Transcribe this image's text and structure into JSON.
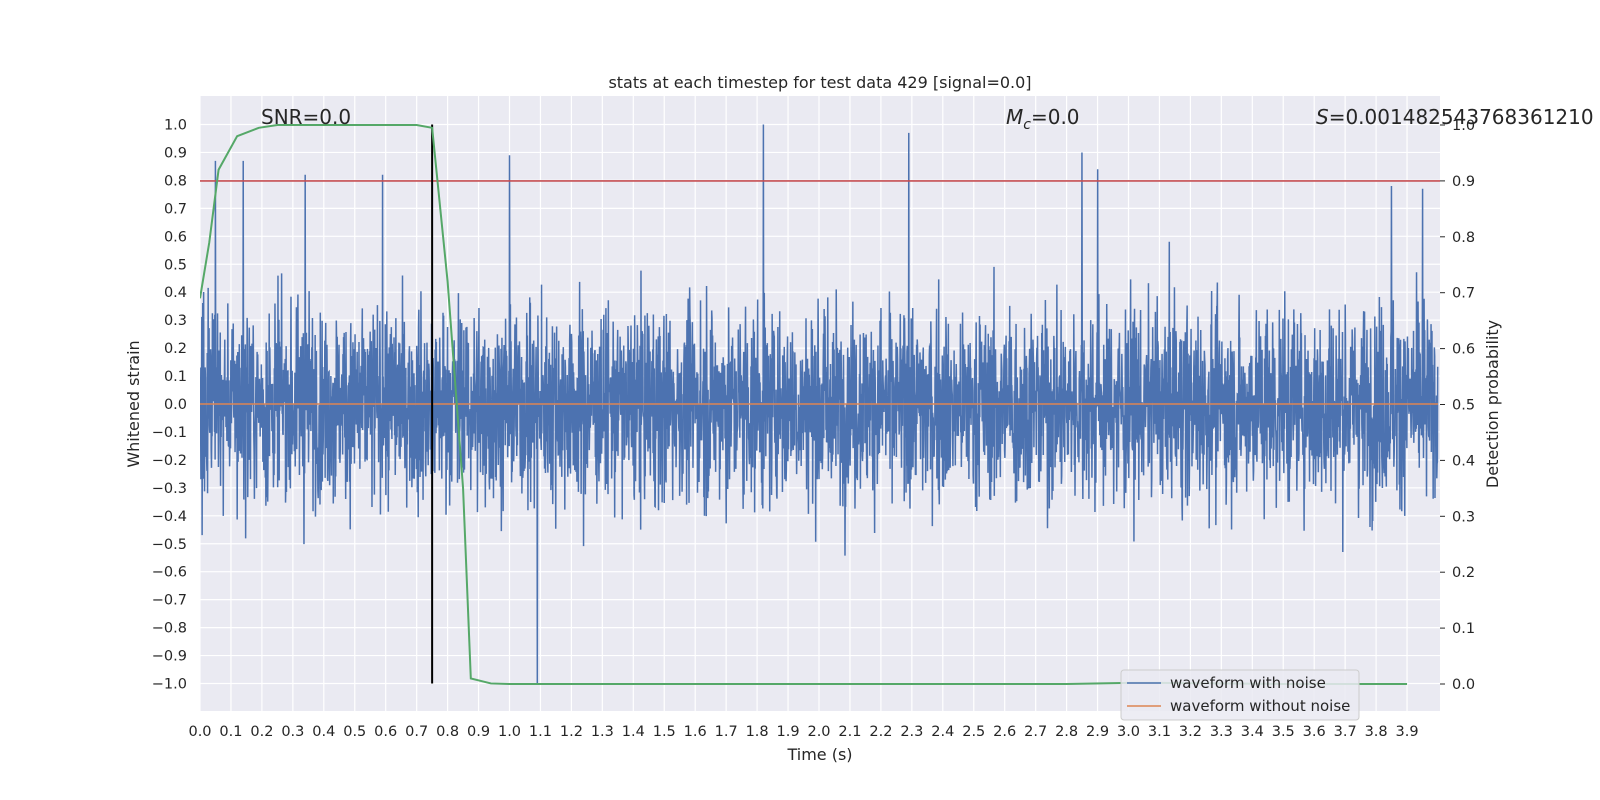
{
  "chart_data": {
    "type": "line",
    "title": "stats at each timestep for test data 429 [signal=0.0]",
    "xlabel": "Time (s)",
    "ylabel": "Whitened strain",
    "y2label": "Detection probability",
    "xlim": [
      0.0,
      4.0
    ],
    "ylim": [
      -1.1,
      1.1
    ],
    "y2lim": [
      -0.05,
      1.05
    ],
    "xticks": [
      "0.0",
      "0.1",
      "0.2",
      "0.3",
      "0.4",
      "0.5",
      "0.6",
      "0.7",
      "0.8",
      "0.9",
      "1.0",
      "1.1",
      "1.2",
      "1.3",
      "1.4",
      "1.5",
      "1.6",
      "1.7",
      "1.8",
      "1.9",
      "2.0",
      "2.1",
      "2.2",
      "2.3",
      "2.4",
      "2.5",
      "2.6",
      "2.7",
      "2.8",
      "2.9",
      "3.0",
      "3.1",
      "3.2",
      "3.3",
      "3.4",
      "3.5",
      "3.6",
      "3.7",
      "3.8",
      "3.9"
    ],
    "yticks": [
      "1.0",
      "0.9",
      "0.8",
      "0.7",
      "0.6",
      "0.5",
      "0.4",
      "0.3",
      "0.2",
      "0.1",
      "0.0",
      "−0.1",
      "−0.2",
      "−0.3",
      "−0.4",
      "−0.5",
      "−0.6",
      "−0.7",
      "−0.8",
      "−0.9",
      "−1.0"
    ],
    "y2ticks": [
      "1.0",
      "0.9",
      "0.8",
      "0.7",
      "0.6",
      "0.5",
      "0.4",
      "0.3",
      "0.2",
      "0.1",
      "0.0"
    ],
    "annotations": {
      "snr": "SNR=0.0",
      "mc_symbol": "M",
      "mc_sub": "c",
      "mc_value": "=0.0",
      "s_symbol": "S",
      "s_value": "=0.001482543768361210"
    },
    "threshold": {
      "value": 0.9,
      "axis": "y2",
      "color": "#c44e52"
    },
    "marker_line": {
      "x": 0.75,
      "y_range": [
        -1.0,
        1.0
      ],
      "color": "#000000"
    },
    "series": [
      {
        "name": "waveform with noise",
        "color": "#4c72b0",
        "axis": "y",
        "description": "noisy whitened strain, 4096 samples over 0–4 s, amplitude mostly within ±0.6, peaks reaching ±1.0",
        "notable_peaks": [
          {
            "x": 0.05,
            "y": 0.87
          },
          {
            "x": 0.14,
            "y": 0.87
          },
          {
            "x": 0.34,
            "y": 0.82
          },
          {
            "x": 0.59,
            "y": 0.82
          },
          {
            "x": 1.0,
            "y": 0.89
          },
          {
            "x": 1.09,
            "y": -1.0
          },
          {
            "x": 1.82,
            "y": 1.0
          },
          {
            "x": 2.29,
            "y": 0.97
          },
          {
            "x": 2.85,
            "y": 0.9
          },
          {
            "x": 2.9,
            "y": 0.84
          },
          {
            "x": 3.85,
            "y": 0.78
          },
          {
            "x": 3.95,
            "y": 0.77
          }
        ]
      },
      {
        "name": "waveform without noise",
        "color": "#dd8452",
        "axis": "y",
        "x": [
          0.0,
          4.0
        ],
        "values": [
          0.0,
          0.0
        ]
      },
      {
        "name": "detection probability",
        "color": "#55a868",
        "axis": "y2",
        "x": [
          0.0,
          0.03,
          0.06,
          0.12,
          0.19,
          0.25,
          0.33,
          0.45,
          0.55,
          0.7,
          0.75,
          0.8,
          0.85,
          0.875,
          0.94,
          1.0,
          1.2,
          1.5,
          2.0,
          2.5,
          2.8,
          3.0,
          3.1,
          3.5,
          3.9
        ],
        "values": [
          0.69,
          0.79,
          0.92,
          0.98,
          0.995,
          1.0,
          1.0,
          1.0,
          1.0,
          1.0,
          0.995,
          0.72,
          0.35,
          0.01,
          0.001,
          0.0,
          0.0,
          0.0,
          0.0,
          0.0,
          0.0,
          0.002,
          0.002,
          0.0,
          0.0
        ]
      }
    ],
    "legend": {
      "placement": "lower-right",
      "entries": [
        {
          "label": "waveform with noise",
          "color": "#4c72b0"
        },
        {
          "label": "waveform without noise",
          "color": "#dd8452"
        }
      ]
    },
    "grid": true
  }
}
